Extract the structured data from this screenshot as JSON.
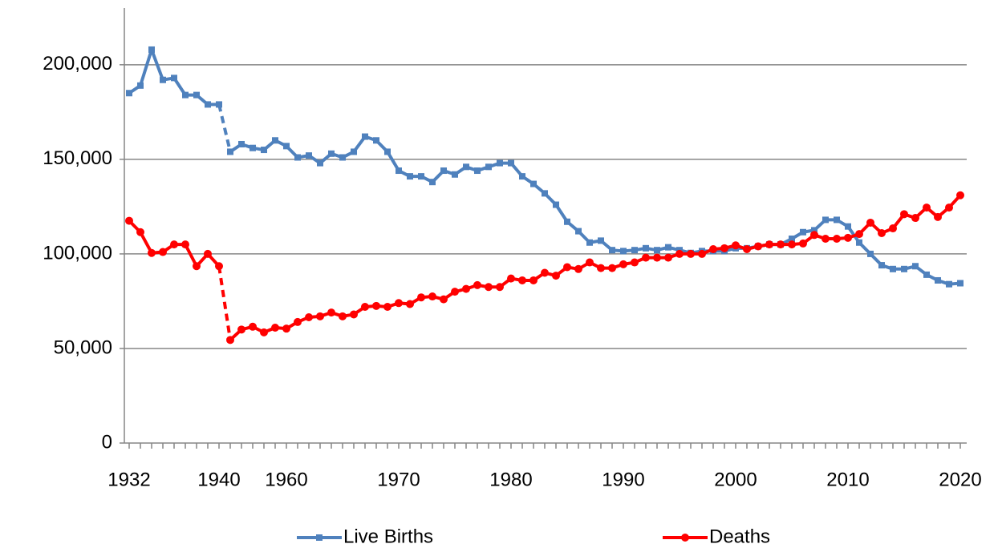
{
  "chart_data": {
    "type": "line",
    "categories": [
      "1932",
      null,
      null,
      null,
      null,
      null,
      null,
      null,
      "1940",
      null,
      null,
      null,
      null,
      null,
      "1960",
      null,
      null,
      null,
      null,
      null,
      null,
      null,
      null,
      null,
      "1970",
      null,
      null,
      null,
      null,
      null,
      null,
      null,
      null,
      null,
      "1980",
      null,
      null,
      null,
      null,
      null,
      null,
      null,
      null,
      null,
      "1990",
      null,
      null,
      null,
      null,
      null,
      null,
      null,
      null,
      null,
      "2000",
      null,
      null,
      null,
      null,
      null,
      null,
      null,
      null,
      null,
      "2010",
      null,
      null,
      null,
      null,
      null,
      null,
      null,
      null,
      null,
      "2020"
    ],
    "series": [
      {
        "name": "Live Births",
        "color": "#4f81bd",
        "marker": "square",
        "values": [
          185000,
          189000,
          208000,
          192000,
          193000,
          184000,
          184000,
          179000,
          179000,
          154000,
          158000,
          156000,
          155000,
          160000,
          157000,
          151000,
          152000,
          148000,
          153000,
          151000,
          154000,
          162000,
          160000,
          154000,
          144000,
          141000,
          141000,
          138000,
          144000,
          142000,
          146000,
          144000,
          146000,
          148000,
          148000,
          141000,
          137000,
          132000,
          126000,
          117000,
          112000,
          106000,
          107000,
          102000,
          101500,
          102000,
          103000,
          102000,
          103500,
          102000,
          100500,
          101500,
          101500,
          101500,
          103000,
          103000,
          104000,
          105000,
          105000,
          108000,
          111500,
          112500,
          118000,
          118000,
          114500,
          106000,
          100000,
          94000,
          92000,
          92000,
          93500,
          89000,
          86000,
          84000,
          84500
        ]
      },
      {
        "name": "Deaths",
        "color": "#ff0000",
        "marker": "circle",
        "values": [
          117500,
          111500,
          100500,
          101000,
          105000,
          105000,
          93500,
          100000,
          93500,
          54500,
          60000,
          61500,
          58500,
          61000,
          60500,
          64000,
          66500,
          67000,
          69000,
          67000,
          68000,
          72000,
          72500,
          72000,
          74000,
          73500,
          77000,
          77500,
          76000,
          80000,
          81500,
          83500,
          82500,
          82500,
          87000,
          86000,
          86000,
          90000,
          88500,
          93000,
          92000,
          95500,
          92500,
          92500,
          94500,
          95500,
          98000,
          98000,
          98000,
          100000,
          100000,
          100000,
          102500,
          103000,
          104500,
          102500,
          104000,
          105000,
          105000,
          105000,
          105500,
          110000,
          108000,
          108000,
          108500,
          110500,
          116500,
          111000,
          113500,
          121000,
          119000,
          124500,
          119500,
          124500,
          131000
        ]
      }
    ],
    "ylim": [
      0,
      230000
    ],
    "yticks": [
      0,
      {
        "value": 50000,
        "label": "50,000"
      },
      {
        "value": 100000,
        "label": "100,000"
      },
      {
        "value": 150000,
        "label": "150,000"
      },
      {
        "value": 200000,
        "label": "200,000"
      }
    ],
    "grid": true,
    "legend": "bottom"
  }
}
